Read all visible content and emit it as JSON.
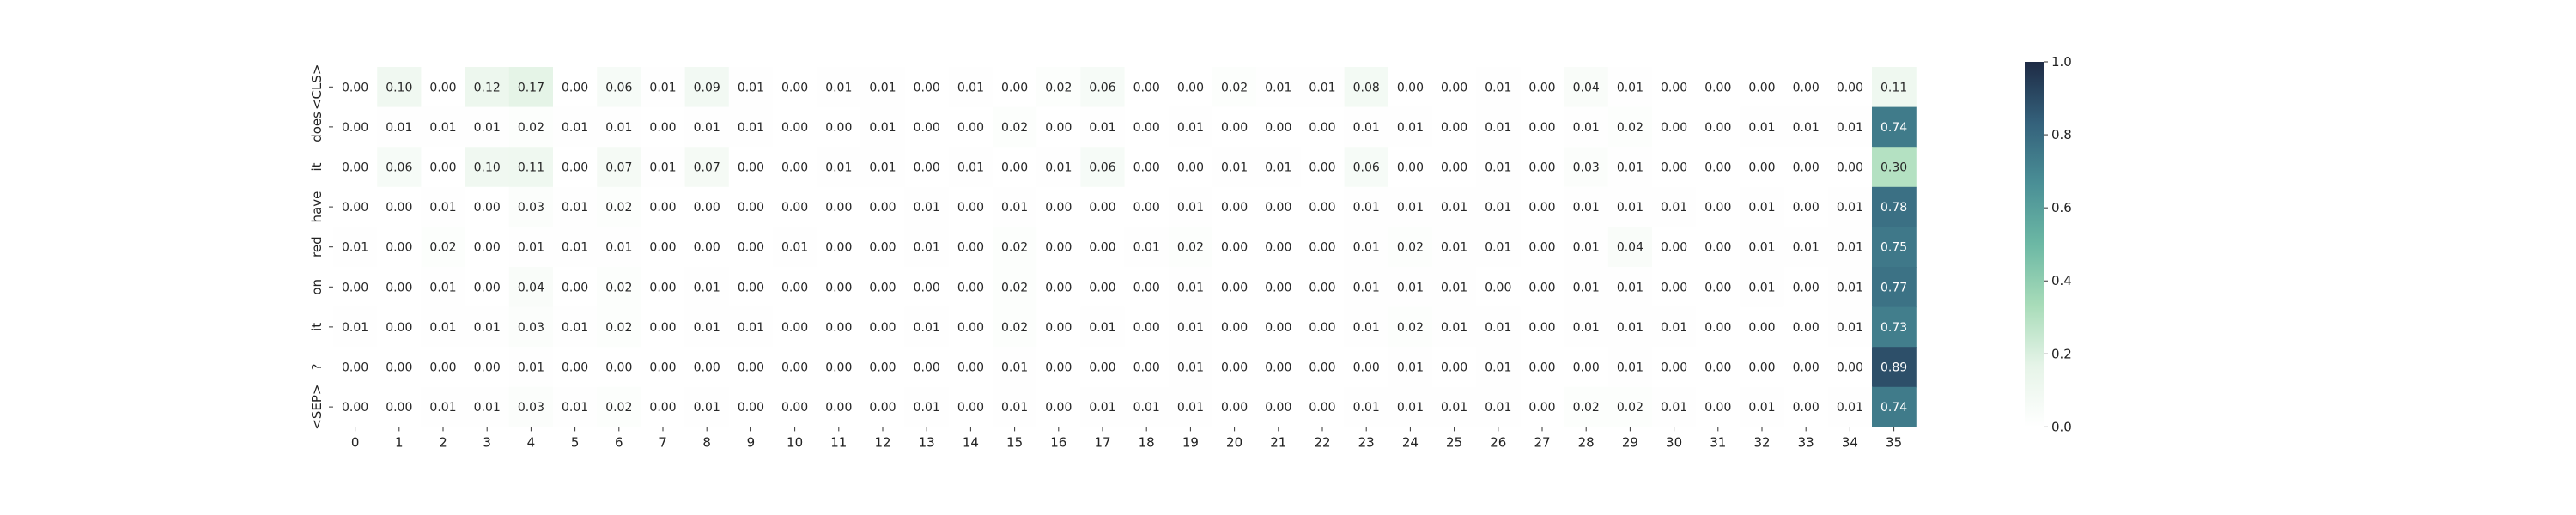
{
  "chart_data": {
    "type": "heatmap",
    "row_labels": [
      "<CLS>",
      "does",
      "it",
      "have",
      "red",
      "on",
      "it",
      "?",
      "<SEP>"
    ],
    "col_labels": [
      "0",
      "1",
      "2",
      "3",
      "4",
      "5",
      "6",
      "7",
      "8",
      "9",
      "10",
      "11",
      "12",
      "13",
      "14",
      "15",
      "16",
      "17",
      "18",
      "19",
      "20",
      "21",
      "22",
      "23",
      "24",
      "25",
      "26",
      "27",
      "28",
      "29",
      "30",
      "31",
      "32",
      "33",
      "34",
      "35"
    ],
    "values": [
      [
        0.0,
        0.1,
        0.0,
        0.12,
        0.17,
        0.0,
        0.06,
        0.01,
        0.09,
        0.01,
        0.0,
        0.01,
        0.01,
        0.0,
        0.01,
        0.0,
        0.02,
        0.06,
        0.0,
        0.0,
        0.02,
        0.01,
        0.01,
        0.08,
        0.0,
        0.0,
        0.01,
        0.0,
        0.04,
        0.01,
        0.0,
        0.0,
        0.0,
        0.0,
        0.0,
        0.11
      ],
      [
        0.0,
        0.01,
        0.01,
        0.01,
        0.02,
        0.01,
        0.01,
        0.0,
        0.01,
        0.01,
        0.0,
        0.0,
        0.01,
        0.0,
        0.0,
        0.02,
        0.0,
        0.01,
        0.0,
        0.01,
        0.0,
        0.0,
        0.0,
        0.01,
        0.01,
        0.0,
        0.01,
        0.0,
        0.01,
        0.02,
        0.0,
        0.0,
        0.01,
        0.01,
        0.01,
        0.74
      ],
      [
        0.0,
        0.06,
        0.0,
        0.1,
        0.11,
        0.0,
        0.07,
        0.01,
        0.07,
        0.0,
        0.0,
        0.01,
        0.01,
        0.0,
        0.01,
        0.0,
        0.01,
        0.06,
        0.0,
        0.0,
        0.01,
        0.01,
        0.0,
        0.06,
        0.0,
        0.0,
        0.01,
        0.0,
        0.03,
        0.01,
        0.0,
        0.0,
        0.0,
        0.0,
        0.0,
        0.3
      ],
      [
        0.0,
        0.0,
        0.01,
        0.0,
        0.03,
        0.01,
        0.02,
        0.0,
        0.0,
        0.0,
        0.0,
        0.0,
        0.0,
        0.01,
        0.0,
        0.01,
        0.0,
        0.0,
        0.0,
        0.01,
        0.0,
        0.0,
        0.0,
        0.01,
        0.01,
        0.01,
        0.01,
        0.0,
        0.01,
        0.01,
        0.01,
        0.0,
        0.01,
        0.0,
        0.01,
        0.78
      ],
      [
        0.01,
        0.0,
        0.02,
        0.0,
        0.01,
        0.01,
        0.01,
        0.0,
        0.0,
        0.0,
        0.01,
        0.0,
        0.0,
        0.01,
        0.0,
        0.02,
        0.0,
        0.0,
        0.01,
        0.02,
        0.0,
        0.0,
        0.0,
        0.01,
        0.02,
        0.01,
        0.01,
        0.0,
        0.01,
        0.04,
        0.0,
        0.0,
        0.01,
        0.01,
        0.01,
        0.75
      ],
      [
        0.0,
        0.0,
        0.01,
        0.0,
        0.04,
        0.0,
        0.02,
        0.0,
        0.01,
        0.0,
        0.0,
        0.0,
        0.0,
        0.0,
        0.0,
        0.02,
        0.0,
        0.0,
        0.0,
        0.01,
        0.0,
        0.0,
        0.0,
        0.01,
        0.01,
        0.01,
        0.0,
        0.0,
        0.01,
        0.01,
        0.0,
        0.0,
        0.01,
        0.0,
        0.01,
        0.77
      ],
      [
        0.01,
        0.0,
        0.01,
        0.01,
        0.03,
        0.01,
        0.02,
        0.0,
        0.01,
        0.01,
        0.0,
        0.0,
        0.0,
        0.01,
        0.0,
        0.02,
        0.0,
        0.01,
        0.0,
        0.01,
        0.0,
        0.0,
        0.0,
        0.01,
        0.02,
        0.01,
        0.01,
        0.0,
        0.01,
        0.01,
        0.01,
        0.0,
        0.0,
        0.0,
        0.01,
        0.73
      ],
      [
        0.0,
        0.0,
        0.0,
        0.0,
        0.01,
        0.0,
        0.0,
        0.0,
        0.0,
        0.0,
        0.0,
        0.0,
        0.0,
        0.0,
        0.0,
        0.01,
        0.0,
        0.0,
        0.0,
        0.01,
        0.0,
        0.0,
        0.0,
        0.0,
        0.01,
        0.0,
        0.01,
        0.0,
        0.0,
        0.01,
        0.0,
        0.0,
        0.0,
        0.0,
        0.0,
        0.89
      ],
      [
        0.0,
        0.0,
        0.01,
        0.01,
        0.03,
        0.01,
        0.02,
        0.0,
        0.01,
        0.0,
        0.0,
        0.0,
        0.0,
        0.01,
        0.0,
        0.01,
        0.0,
        0.01,
        0.01,
        0.01,
        0.0,
        0.0,
        0.0,
        0.01,
        0.01,
        0.01,
        0.01,
        0.0,
        0.02,
        0.02,
        0.01,
        0.0,
        0.01,
        0.0,
        0.01,
        0.74
      ]
    ],
    "value_range": [
      0.0,
      1.0
    ],
    "colorbar_ticks": [
      "0.0",
      "0.2",
      "0.4",
      "0.6",
      "0.8",
      "1.0"
    ],
    "colormap_stops": [
      "#ffffff",
      "#e6f4e8",
      "#a8dcb9",
      "#6cb8a4",
      "#4a8f96",
      "#34617b",
      "#1e2b45"
    ],
    "annotated": true,
    "grid": false,
    "legend": "colorbar right",
    "title": "",
    "xlabel": "",
    "ylabel": ""
  }
}
